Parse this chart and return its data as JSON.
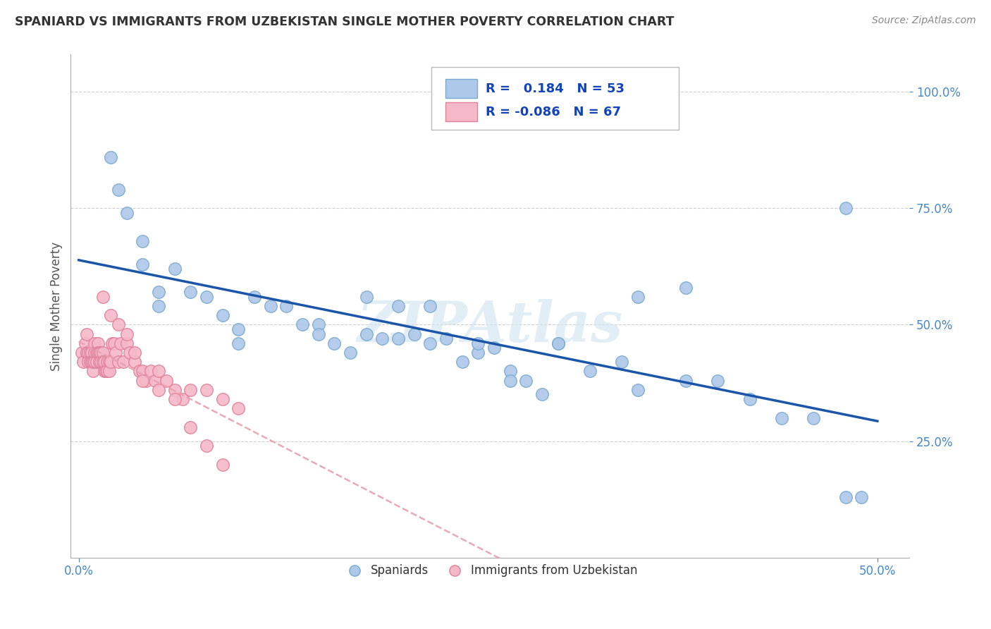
{
  "title": "SPANIARD VS IMMIGRANTS FROM UZBEKISTAN SINGLE MOTHER POVERTY CORRELATION CHART",
  "source": "Source: ZipAtlas.com",
  "ylabel": "Single Mother Poverty",
  "xlim": [
    -0.005,
    0.52
  ],
  "ylim": [
    0.0,
    1.08
  ],
  "xticks": [
    0.0,
    0.5
  ],
  "xticklabels": [
    "0.0%",
    "50.0%"
  ],
  "yticks": [
    0.25,
    0.5,
    0.75,
    1.0
  ],
  "yticklabels": [
    "25.0%",
    "50.0%",
    "75.0%",
    "100.0%"
  ],
  "legend_r_blue": "0.184",
  "legend_n_blue": "53",
  "legend_r_pink": "-0.086",
  "legend_n_pink": "67",
  "blue_scatter_color": "#adc8e8",
  "blue_scatter_edge": "#7aaad0",
  "pink_scatter_color": "#f5b8c8",
  "pink_scatter_edge": "#e0809a",
  "blue_line_color": "#1a55aa",
  "pink_line_color": "#e8a0b0",
  "grid_color": "#d0d0d0",
  "watermark_color": "#d0e4f0",
  "spaniards_x": [
    0.02,
    0.025,
    0.03,
    0.04,
    0.04,
    0.05,
    0.05,
    0.06,
    0.07,
    0.08,
    0.09,
    0.1,
    0.11,
    0.12,
    0.13,
    0.14,
    0.15,
    0.16,
    0.17,
    0.18,
    0.19,
    0.2,
    0.21,
    0.22,
    0.23,
    0.24,
    0.25,
    0.26,
    0.27,
    0.28,
    0.29,
    0.3,
    0.32,
    0.34,
    0.35,
    0.38,
    0.4,
    0.42,
    0.44,
    0.46,
    0.48,
    0.49,
    0.22,
    0.27,
    0.3,
    0.18,
    0.2,
    0.25,
    0.15,
    0.1,
    0.35,
    0.38,
    0.48
  ],
  "spaniards_y": [
    0.86,
    0.79,
    0.74,
    0.68,
    0.63,
    0.57,
    0.54,
    0.62,
    0.57,
    0.56,
    0.52,
    0.49,
    0.56,
    0.54,
    0.54,
    0.5,
    0.5,
    0.46,
    0.44,
    0.48,
    0.47,
    0.47,
    0.48,
    0.46,
    0.47,
    0.42,
    0.44,
    0.45,
    0.4,
    0.38,
    0.35,
    0.46,
    0.4,
    0.42,
    0.36,
    0.38,
    0.38,
    0.34,
    0.3,
    0.3,
    0.13,
    0.13,
    0.54,
    0.38,
    0.46,
    0.56,
    0.54,
    0.46,
    0.48,
    0.46,
    0.56,
    0.58,
    0.75
  ],
  "uzbekistan_x": [
    0.002,
    0.003,
    0.004,
    0.005,
    0.005,
    0.006,
    0.006,
    0.007,
    0.007,
    0.008,
    0.008,
    0.009,
    0.009,
    0.01,
    0.01,
    0.01,
    0.011,
    0.011,
    0.012,
    0.012,
    0.013,
    0.013,
    0.014,
    0.014,
    0.015,
    0.015,
    0.016,
    0.016,
    0.017,
    0.018,
    0.018,
    0.019,
    0.019,
    0.02,
    0.021,
    0.022,
    0.023,
    0.025,
    0.026,
    0.028,
    0.03,
    0.032,
    0.035,
    0.038,
    0.04,
    0.042,
    0.045,
    0.048,
    0.05,
    0.055,
    0.06,
    0.065,
    0.07,
    0.08,
    0.09,
    0.1,
    0.015,
    0.02,
    0.025,
    0.03,
    0.035,
    0.04,
    0.05,
    0.06,
    0.07,
    0.08,
    0.09
  ],
  "uzbekistan_y": [
    0.44,
    0.42,
    0.46,
    0.48,
    0.44,
    0.44,
    0.42,
    0.44,
    0.42,
    0.44,
    0.42,
    0.4,
    0.42,
    0.46,
    0.44,
    0.42,
    0.44,
    0.42,
    0.46,
    0.44,
    0.44,
    0.42,
    0.44,
    0.42,
    0.44,
    0.42,
    0.4,
    0.42,
    0.4,
    0.42,
    0.4,
    0.42,
    0.4,
    0.42,
    0.46,
    0.46,
    0.44,
    0.42,
    0.46,
    0.42,
    0.46,
    0.44,
    0.42,
    0.4,
    0.4,
    0.38,
    0.4,
    0.38,
    0.4,
    0.38,
    0.36,
    0.34,
    0.36,
    0.36,
    0.34,
    0.32,
    0.56,
    0.52,
    0.5,
    0.48,
    0.44,
    0.38,
    0.36,
    0.34,
    0.28,
    0.24,
    0.2
  ]
}
